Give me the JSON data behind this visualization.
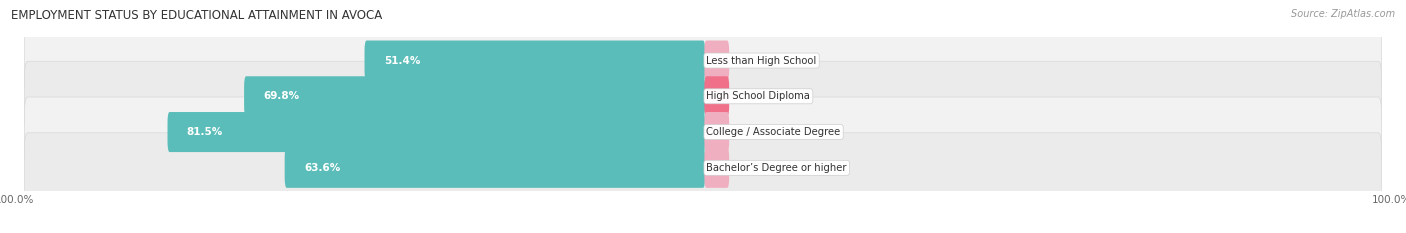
{
  "title": "EMPLOYMENT STATUS BY EDUCATIONAL ATTAINMENT IN AVOCA",
  "source": "Source: ZipAtlas.com",
  "categories": [
    "Less than High School",
    "High School Diploma",
    "College / Associate Degree",
    "Bachelor’s Degree or higher"
  ],
  "labor_force": [
    51.4,
    69.8,
    81.5,
    63.6
  ],
  "unemployed": [
    0.0,
    1.1,
    0.0,
    0.0
  ],
  "labor_color": "#5bbdb9",
  "unemployed_color_strong": "#f0708a",
  "unemployed_color_light": "#f0afc0",
  "row_bg_odd": "#f0f0f0",
  "row_bg_even": "#e8e8e8",
  "title_fontsize": 8.5,
  "label_fontsize": 7.5,
  "tick_fontsize": 7.5,
  "source_fontsize": 7,
  "xlim_left": -100,
  "xlim_right": 100
}
